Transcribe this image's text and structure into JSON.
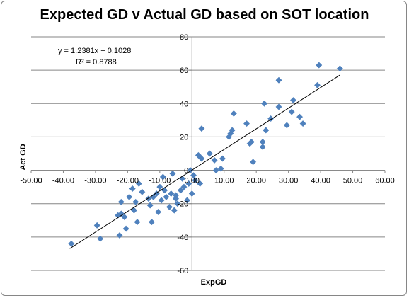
{
  "chart_data": {
    "type": "scatter",
    "title": "Expected GD v Actual GD based on SOT location",
    "xlabel": "ExpGD",
    "ylabel": "Act GD",
    "xlim": [
      -50,
      60
    ],
    "ylim": [
      -60,
      80
    ],
    "xticks": [
      "-50.00",
      "-40.00",
      "-30.00",
      "-20.00",
      "-10.00",
      "0.00",
      "10.00",
      "20.00",
      "30.00",
      "40.00",
      "50.00",
      "60.00"
    ],
    "yticks": [
      "-60",
      "-40",
      "-20",
      "0",
      "20",
      "40",
      "60",
      "80"
    ],
    "grid": "horizontal",
    "trendline": {
      "slope": 1.2381,
      "intercept": 0.1028,
      "x_range": [
        -38,
        46
      ],
      "equation": "y = 1.2381x + 0.1028",
      "r_squared": "R² = 0.8788"
    },
    "series": [
      {
        "color": "#4f81bd",
        "points": [
          [
            -37.5,
            -44
          ],
          [
            -29.5,
            -33
          ],
          [
            -28.5,
            -41
          ],
          [
            -23,
            -27
          ],
          [
            -22,
            -19
          ],
          [
            -22,
            -26
          ],
          [
            -22.5,
            -39
          ],
          [
            -21,
            -28
          ],
          [
            -20.5,
            -35
          ],
          [
            -19.5,
            -16
          ],
          [
            -18.5,
            -11
          ],
          [
            -18,
            -24
          ],
          [
            -17.5,
            -19
          ],
          [
            -17,
            -31
          ],
          [
            -16.5,
            -8
          ],
          [
            -15.5,
            -13
          ],
          [
            -13.5,
            -17
          ],
          [
            -13,
            -21
          ],
          [
            -12.5,
            -31
          ],
          [
            -12,
            -16
          ],
          [
            -11,
            -14
          ],
          [
            -10.5,
            -25
          ],
          [
            -10,
            -10
          ],
          [
            -9.5,
            -18
          ],
          [
            -9,
            -4
          ],
          [
            -8.5,
            -12
          ],
          [
            -8,
            -16
          ],
          [
            -7,
            -22
          ],
          [
            -6.5,
            -14
          ],
          [
            -6,
            -2
          ],
          [
            -5.5,
            -24
          ],
          [
            -5,
            -15
          ],
          [
            -5,
            -17
          ],
          [
            -4.5,
            -20
          ],
          [
            -3.5,
            -12
          ],
          [
            -3,
            -5
          ],
          [
            -2.5,
            -10
          ],
          [
            -1.5,
            -18
          ],
          [
            -1,
            -8
          ],
          [
            -0.5,
            0
          ],
          [
            0,
            -14
          ],
          [
            0.5,
            -3
          ],
          [
            1,
            -6
          ],
          [
            2.5,
            -8
          ],
          [
            2,
            9
          ],
          [
            2.5,
            8
          ],
          [
            3,
            25
          ],
          [
            3,
            7
          ],
          [
            5.5,
            10
          ],
          [
            7,
            6
          ],
          [
            7.5,
            0
          ],
          [
            9,
            1
          ],
          [
            9.5,
            7
          ],
          [
            11.5,
            20
          ],
          [
            12,
            22
          ],
          [
            12.5,
            24
          ],
          [
            13,
            34
          ],
          [
            17,
            28
          ],
          [
            18,
            16
          ],
          [
            18.5,
            17
          ],
          [
            19,
            5
          ],
          [
            22,
            14
          ],
          [
            22,
            17
          ],
          [
            22.5,
            40
          ],
          [
            23,
            24
          ],
          [
            24.5,
            31
          ],
          [
            27,
            38
          ],
          [
            27,
            54
          ],
          [
            29.5,
            27
          ],
          [
            31,
            35
          ],
          [
            31.5,
            42
          ],
          [
            33.5,
            32
          ],
          [
            34.5,
            28
          ],
          [
            39,
            51
          ],
          [
            39.5,
            63
          ],
          [
            46,
            61
          ]
        ]
      }
    ]
  }
}
